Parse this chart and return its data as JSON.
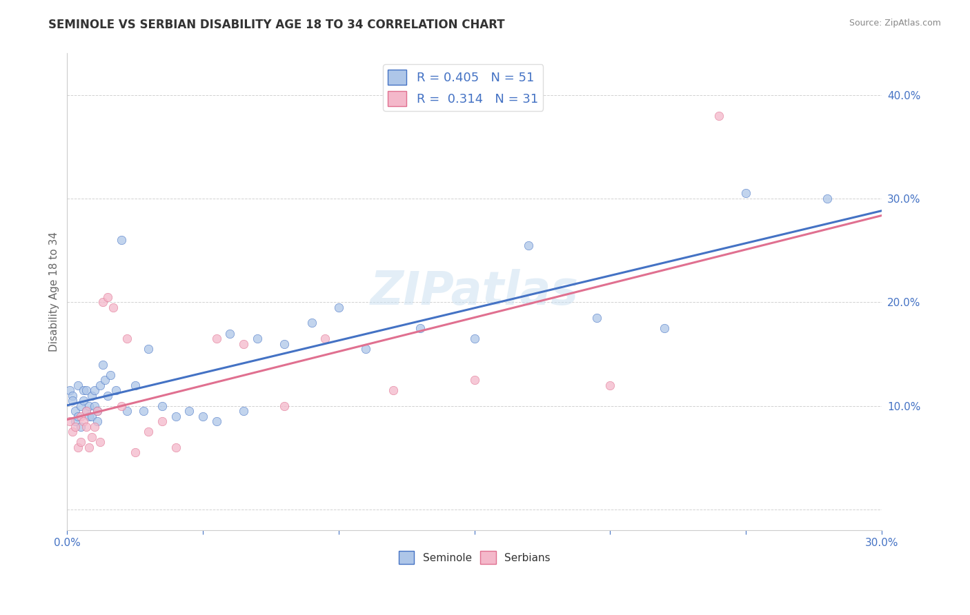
{
  "title": "SEMINOLE VS SERBIAN DISABILITY AGE 18 TO 34 CORRELATION CHART",
  "source": "Source: ZipAtlas.com",
  "ylabel_label": "Disability Age 18 to 34",
  "xlim": [
    0.0,
    0.3
  ],
  "ylim": [
    -0.02,
    0.44
  ],
  "xticks": [
    0.0,
    0.05,
    0.1,
    0.15,
    0.2,
    0.25,
    0.3
  ],
  "xticklabels": [
    "0.0%",
    "",
    "",
    "",
    "",
    "",
    "30.0%"
  ],
  "yticks": [
    0.0,
    0.1,
    0.2,
    0.3,
    0.4
  ],
  "yticklabels": [
    "",
    "10.0%",
    "20.0%",
    "30.0%",
    "40.0%"
  ],
  "seminole_color": "#aec6e8",
  "serbian_color": "#f4b8ca",
  "line_seminole_color": "#4472c4",
  "line_serbian_color": "#e07090",
  "legend_r_seminole": "R = 0.405",
  "legend_n_seminole": "N = 51",
  "legend_r_serbian": "R = 0.314",
  "legend_n_serbian": "N = 31",
  "seminole_x": [
    0.001,
    0.002,
    0.002,
    0.003,
    0.003,
    0.004,
    0.004,
    0.005,
    0.005,
    0.006,
    0.006,
    0.007,
    0.007,
    0.008,
    0.008,
    0.009,
    0.009,
    0.01,
    0.01,
    0.011,
    0.011,
    0.012,
    0.013,
    0.014,
    0.015,
    0.016,
    0.018,
    0.02,
    0.022,
    0.025,
    0.028,
    0.03,
    0.035,
    0.04,
    0.045,
    0.05,
    0.055,
    0.06,
    0.065,
    0.07,
    0.08,
    0.09,
    0.1,
    0.11,
    0.13,
    0.15,
    0.17,
    0.195,
    0.22,
    0.25,
    0.28
  ],
  "seminole_y": [
    0.115,
    0.11,
    0.105,
    0.095,
    0.085,
    0.09,
    0.12,
    0.1,
    0.08,
    0.115,
    0.105,
    0.095,
    0.115,
    0.09,
    0.1,
    0.11,
    0.09,
    0.1,
    0.115,
    0.095,
    0.085,
    0.12,
    0.14,
    0.125,
    0.11,
    0.13,
    0.115,
    0.26,
    0.095,
    0.12,
    0.095,
    0.155,
    0.1,
    0.09,
    0.095,
    0.09,
    0.085,
    0.17,
    0.095,
    0.165,
    0.16,
    0.18,
    0.195,
    0.155,
    0.175,
    0.165,
    0.255,
    0.185,
    0.175,
    0.305,
    0.3
  ],
  "serbian_x": [
    0.001,
    0.002,
    0.003,
    0.004,
    0.005,
    0.005,
    0.006,
    0.007,
    0.007,
    0.008,
    0.009,
    0.01,
    0.011,
    0.012,
    0.013,
    0.015,
    0.017,
    0.02,
    0.022,
    0.025,
    0.03,
    0.035,
    0.04,
    0.055,
    0.065,
    0.08,
    0.095,
    0.12,
    0.15,
    0.2,
    0.24
  ],
  "serbian_y": [
    0.085,
    0.075,
    0.08,
    0.06,
    0.09,
    0.065,
    0.085,
    0.08,
    0.095,
    0.06,
    0.07,
    0.08,
    0.095,
    0.065,
    0.2,
    0.205,
    0.195,
    0.1,
    0.165,
    0.055,
    0.075,
    0.085,
    0.06,
    0.165,
    0.16,
    0.1,
    0.165,
    0.115,
    0.125,
    0.12,
    0.38
  ],
  "background_color": "#ffffff",
  "grid_color": "#cccccc"
}
